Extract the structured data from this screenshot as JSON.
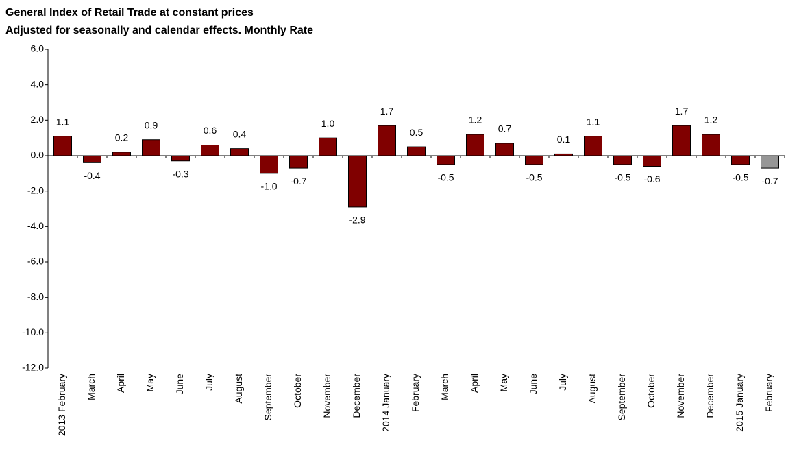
{
  "chart_data": {
    "type": "bar",
    "title": "General Index of Retail Trade at constant prices",
    "subtitle": "Adjusted for seasonally and calendar effects. Monthly Rate",
    "categories": [
      "2013 February",
      "March",
      "April",
      "May",
      "June",
      "July",
      "August",
      "September",
      "October",
      "November",
      "December",
      "2014 January",
      "February",
      "March",
      "April",
      "May",
      "June",
      "July",
      "August",
      "September",
      "October",
      "November",
      "December",
      "2015 January",
      "February"
    ],
    "values": [
      1.1,
      -0.4,
      0.2,
      0.9,
      -0.3,
      0.6,
      0.4,
      -1.0,
      -0.7,
      1.0,
      -2.9,
      1.7,
      0.5,
      -0.5,
      1.2,
      0.7,
      -0.5,
      0.1,
      1.1,
      -0.5,
      -0.6,
      1.7,
      1.2,
      -0.5,
      -0.7
    ],
    "value_labels": [
      "1.1",
      "-0.4",
      "0.2",
      "0.9",
      "-0.3",
      "0.6",
      "0.4",
      "-1.0",
      "-0.7",
      "1.0",
      "-2.9",
      "1.7",
      "0.5",
      "-0.5",
      "1.2",
      "0.7",
      "-0.5",
      "0.1",
      "1.1",
      "-0.5",
      "-0.6",
      "1.7",
      "1.2",
      "-0.5",
      "-0.7"
    ],
    "colors": [
      "#800000",
      "#800000",
      "#800000",
      "#800000",
      "#800000",
      "#800000",
      "#800000",
      "#800000",
      "#800000",
      "#800000",
      "#800000",
      "#800000",
      "#800000",
      "#800000",
      "#800000",
      "#800000",
      "#800000",
      "#800000",
      "#800000",
      "#800000",
      "#800000",
      "#800000",
      "#800000",
      "#800000",
      "#969696"
    ],
    "ylim": [
      -12,
      6
    ],
    "yticks": [
      {
        "value": -12,
        "label": "-12.0"
      },
      {
        "value": -10,
        "label": "-10.0"
      },
      {
        "value": -8,
        "label": "-8.0"
      },
      {
        "value": -6,
        "label": "-6.0"
      },
      {
        "value": -4,
        "label": "-4.0"
      },
      {
        "value": -2,
        "label": "-2.0"
      },
      {
        "value": 0,
        "label": "0.0"
      },
      {
        "value": 2,
        "label": "2.0"
      },
      {
        "value": 4,
        "label": "4.0"
      },
      {
        "value": 6,
        "label": "6.0"
      }
    ],
    "grid": false
  }
}
